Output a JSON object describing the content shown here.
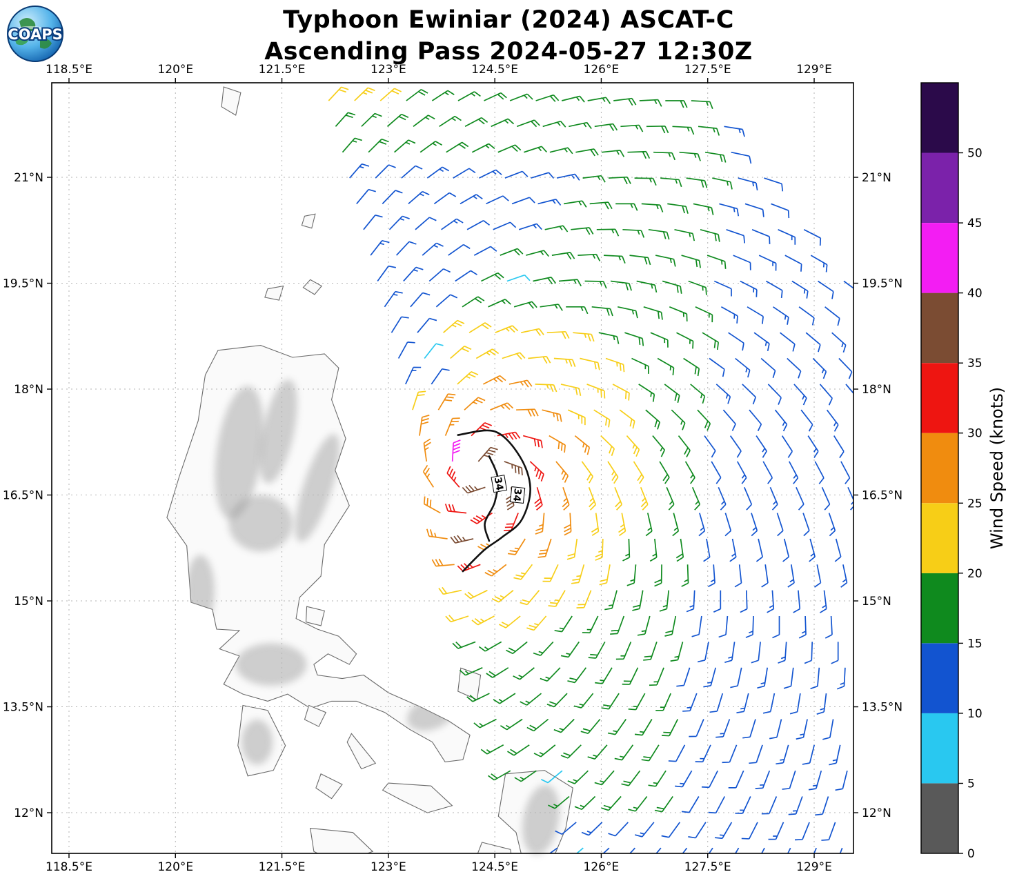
{
  "header": {
    "title_line1": "Typhoon Ewiniar (2024) ASCAT-C",
    "title_line2": "Ascending Pass 2024-05-27 12:30Z",
    "logo_text": "COAPS"
  },
  "chart_data": {
    "type": "scatter",
    "subtype": "satellite_wind_barb_map",
    "title": "Typhoon Ewiniar (2024) ASCAT-C  Ascending Pass 2024-05-27 12:30Z",
    "x_axis": {
      "range": [
        118.257,
        129.554
      ],
      "ticks": [
        {
          "v": 118.5,
          "label": "118.5°E"
        },
        {
          "v": 120,
          "label": "120°E"
        },
        {
          "v": 121.5,
          "label": "121.5°E"
        },
        {
          "v": 123,
          "label": "123°E"
        },
        {
          "v": 124.5,
          "label": "124.5°E"
        },
        {
          "v": 126,
          "label": "126°E"
        },
        {
          "v": 127.5,
          "label": "127.5°E"
        },
        {
          "v": 129,
          "label": "129°E"
        }
      ]
    },
    "y_axis": {
      "range": [
        22.339,
        11.424
      ],
      "ticks": [
        {
          "v": 21,
          "label": "21°N"
        },
        {
          "v": 19.5,
          "label": "19.5°N"
        },
        {
          "v": 18,
          "label": "18°N"
        },
        {
          "v": 16.5,
          "label": "16.5°N"
        },
        {
          "v": 15,
          "label": "15°N"
        },
        {
          "v": 13.5,
          "label": "13.5°N"
        },
        {
          "v": 12,
          "label": "12°N"
        }
      ]
    },
    "grid": true,
    "colorbar": {
      "label": "Wind Speed (knots)",
      "range": [
        0,
        55
      ],
      "tick_values": [
        0,
        5,
        10,
        15,
        20,
        25,
        30,
        35,
        40,
        45,
        50
      ],
      "bins": [
        {
          "max": 5,
          "color": "#595959"
        },
        {
          "max": 10,
          "color": "#29c8f0"
        },
        {
          "max": 15,
          "color": "#1254d0"
        },
        {
          "max": 20,
          "color": "#0f8a1e"
        },
        {
          "max": 25,
          "color": "#f7ce17"
        },
        {
          "max": 30,
          "color": "#f08c0f"
        },
        {
          "max": 35,
          "color": "#ee1511"
        },
        {
          "max": 40,
          "color": "#7b4c33"
        },
        {
          "max": 45,
          "color": "#f31df3"
        },
        {
          "max": 50,
          "color": "#7b22aa"
        },
        {
          "max": 55,
          "color": "#2b0a4a"
        }
      ]
    },
    "contour": {
      "label": "34",
      "paths": [
        [
          [
            123.98,
            17.35
          ],
          [
            124.5,
            17.4
          ],
          [
            124.85,
            17.05
          ],
          [
            125.0,
            16.6
          ],
          [
            124.88,
            16.15
          ],
          [
            124.6,
            15.9
          ],
          [
            124.35,
            15.72
          ],
          [
            124.05,
            15.42
          ]
        ],
        [
          [
            124.42,
            17.05
          ],
          [
            124.54,
            16.75
          ],
          [
            124.5,
            16.4
          ],
          [
            124.36,
            16.1
          ],
          [
            124.42,
            15.85
          ]
        ]
      ],
      "label_points": [
        {
          "lon": 124.56,
          "lat": 16.66,
          "rot": 80
        },
        {
          "lon": 124.82,
          "lat": 16.5,
          "rot": 96
        }
      ]
    },
    "wind_model": {
      "center": {
        "lon": 124.38,
        "lat": 16.72
      },
      "inflow_deg": 25,
      "rings": [
        {
          "r": 0.38,
          "kt": 37
        },
        {
          "r": 0.72,
          "kt": 32
        },
        {
          "r": 1.12,
          "kt": 27
        },
        {
          "r": 1.9,
          "kt": 22
        },
        {
          "r": 99,
          "kt": 17
        }
      ],
      "ne_stretch": 0.3,
      "ne_az_rad": 0.55,
      "s_stretch": 0.18,
      "s_az_rad": 2.98,
      "magenta_patch": {
        "lon_min": 123.9,
        "lon_max": 124.25,
        "lat_min": 16.8,
        "lat_max": 17.15,
        "kt": 42
      },
      "south_patch": {
        "lon_min": 124.0,
        "lon_max": 124.45,
        "lat_min": 15.45,
        "lat_max": 15.95,
        "kt": 36
      },
      "top_green": {
        "lat_min": 21.15,
        "kt": 17
      },
      "top_yellow": {
        "lat_min": 21.85,
        "lon_max": 123.0,
        "kt": 22
      },
      "north_blue": {
        "lat_min": 19.15,
        "lon0": 123.85,
        "slope": 0.9,
        "kt": 12
      },
      "west_blue": {
        "lat_min": 17.75,
        "lon_max": 123.65,
        "kt": 12
      },
      "east_blue": {
        "lon0": 127.05,
        "lat0": 12,
        "slope": 0.07,
        "kt": 12
      },
      "bottom_blue": {
        "lat_max": 11.95,
        "kt": 12
      },
      "cyan_radius": 0.2,
      "cyan_spots": [
        [
          123.03,
          19.7
        ],
        [
          124.69,
          19.51
        ],
        [
          123.55,
          18.47
        ],
        [
          125.56,
          12.6
        ],
        [
          125.63,
          11.47
        ]
      ]
    },
    "swath": {
      "lat_min": 11.5,
      "lat_max": 22.33,
      "step": 0.365,
      "left": {
        "lon0": 122.1,
        "lat0": 22.3,
        "slope": 0.27
      },
      "right": {
        "lon0": 127.4,
        "lat0": 22.3,
        "slope": 0.75,
        "lon_max": 129.5
      },
      "land_skip": [
        {
          "lon_min": 124.7,
          "lon_max": 125.35,
          "lat_min": 11.2,
          "lat_max": 12.5
        },
        {
          "lon_min": 124.2,
          "lon_max": 124.8,
          "lat_min": 11.0,
          "lat_max": 11.6
        }
      ]
    },
    "map": {
      "islands": [
        {
          "name": "luzon",
          "pts": [
            [
              120.6,
              18.55
            ],
            [
              121.2,
              18.62
            ],
            [
              121.65,
              18.45
            ],
            [
              122.1,
              18.5
            ],
            [
              122.3,
              18.3
            ],
            [
              122.2,
              17.85
            ],
            [
              122.4,
              17.3
            ],
            [
              122.25,
              16.85
            ],
            [
              122.45,
              16.35
            ],
            [
              122.1,
              15.8
            ],
            [
              122.05,
              15.35
            ],
            [
              121.75,
              15.05
            ],
            [
              121.7,
              14.75
            ],
            [
              122.0,
              14.6
            ],
            [
              122.3,
              14.5
            ],
            [
              122.55,
              14.25
            ],
            [
              122.45,
              14.1
            ],
            [
              122.15,
              14.25
            ],
            [
              121.95,
              14.1
            ],
            [
              122.0,
              13.95
            ],
            [
              122.35,
              13.9
            ],
            [
              122.65,
              13.95
            ],
            [
              123.0,
              13.7
            ],
            [
              123.45,
              13.5
            ],
            [
              123.85,
              13.3
            ],
            [
              124.15,
              13.1
            ],
            [
              124.05,
              12.75
            ],
            [
              123.8,
              12.72
            ],
            [
              123.62,
              13.0
            ],
            [
              123.3,
              13.18
            ],
            [
              122.95,
              13.42
            ],
            [
              122.55,
              13.58
            ],
            [
              122.2,
              13.58
            ],
            [
              121.9,
              13.48
            ],
            [
              121.58,
              13.68
            ],
            [
              121.3,
              13.58
            ],
            [
              120.95,
              13.68
            ],
            [
              120.68,
              13.82
            ],
            [
              120.9,
              14.22
            ],
            [
              120.62,
              14.32
            ],
            [
              120.9,
              14.58
            ],
            [
              120.58,
              14.6
            ],
            [
              120.52,
              14.88
            ],
            [
              120.22,
              14.98
            ],
            [
              120.16,
              15.78
            ],
            [
              119.88,
              16.18
            ],
            [
              120.05,
              16.75
            ],
            [
              120.32,
              17.55
            ],
            [
              120.42,
              18.2
            ]
          ]
        },
        {
          "name": "mindoro",
          "pts": [
            [
              120.95,
              13.52
            ],
            [
              121.3,
              13.45
            ],
            [
              121.55,
              12.95
            ],
            [
              121.38,
              12.6
            ],
            [
              121.02,
              12.52
            ],
            [
              120.88,
              12.95
            ]
          ]
        },
        {
          "name": "marinduque",
          "pts": [
            [
              121.88,
              13.52
            ],
            [
              122.12,
              13.42
            ],
            [
              122.02,
              13.22
            ],
            [
              121.82,
              13.32
            ]
          ]
        },
        {
          "name": "catanduanes",
          "pts": [
            [
              124.02,
              14.05
            ],
            [
              124.3,
              13.95
            ],
            [
              124.25,
              13.6
            ],
            [
              123.98,
              13.72
            ]
          ]
        },
        {
          "name": "burias",
          "pts": [
            [
              122.48,
              13.12
            ],
            [
              122.82,
              12.7
            ],
            [
              122.62,
              12.62
            ],
            [
              122.42,
              13.0
            ]
          ]
        },
        {
          "name": "masbate",
          "pts": [
            [
              123.0,
              12.42
            ],
            [
              123.6,
              12.38
            ],
            [
              123.9,
              12.1
            ],
            [
              123.55,
              12.0
            ],
            [
              123.18,
              12.18
            ],
            [
              122.92,
              12.32
            ]
          ]
        },
        {
          "name": "romblon",
          "pts": [
            [
              122.05,
              12.55
            ],
            [
              122.35,
              12.4
            ],
            [
              122.2,
              12.2
            ],
            [
              121.98,
              12.35
            ]
          ]
        },
        {
          "name": "samar",
          "pts": [
            [
              124.65,
              12.55
            ],
            [
              125.2,
              12.6
            ],
            [
              125.6,
              12.35
            ],
            [
              125.5,
              11.78
            ],
            [
              125.28,
              11.25
            ],
            [
              124.9,
              11.3
            ],
            [
              124.8,
              11.72
            ],
            [
              124.55,
              11.95
            ]
          ]
        },
        {
          "name": "leyte",
          "pts": [
            [
              124.32,
              11.58
            ],
            [
              124.72,
              11.48
            ],
            [
              124.78,
              11.1
            ],
            [
              124.42,
              11.05
            ],
            [
              124.22,
              11.32
            ]
          ]
        },
        {
          "name": "panay",
          "pts": [
            [
              121.9,
              11.78
            ],
            [
              122.5,
              11.72
            ],
            [
              122.78,
              11.45
            ],
            [
              122.3,
              11.28
            ],
            [
              121.95,
              11.45
            ]
          ]
        },
        {
          "name": "taiwan-tip",
          "pts": [
            [
              120.68,
              22.28
            ],
            [
              120.92,
              22.2
            ],
            [
              120.85,
              21.88
            ],
            [
              120.65,
              22.0
            ]
          ]
        },
        {
          "name": "babuyan-1",
          "pts": [
            [
              121.3,
              19.42
            ],
            [
              121.52,
              19.46
            ],
            [
              121.46,
              19.26
            ],
            [
              121.26,
              19.3
            ]
          ]
        },
        {
          "name": "babuyan-2",
          "pts": [
            [
              121.9,
              19.55
            ],
            [
              122.06,
              19.46
            ],
            [
              121.96,
              19.34
            ],
            [
              121.8,
              19.44
            ]
          ]
        },
        {
          "name": "batan",
          "pts": [
            [
              121.82,
              20.45
            ],
            [
              121.97,
              20.48
            ],
            [
              121.92,
              20.28
            ],
            [
              121.78,
              20.32
            ]
          ]
        },
        {
          "name": "polillo",
          "pts": [
            [
              121.85,
              14.92
            ],
            [
              122.1,
              14.86
            ],
            [
              122.05,
              14.65
            ],
            [
              121.84,
              14.7
            ]
          ]
        }
      ],
      "terrain": [
        {
          "lon": 120.9,
          "lat": 17.1,
          "rx": 0.32,
          "ry": 0.95,
          "rot": 8
        },
        {
          "lon": 121.45,
          "lat": 17.4,
          "rx": 0.22,
          "ry": 0.75,
          "rot": 12
        },
        {
          "lon": 122.0,
          "lat": 16.6,
          "rx": 0.2,
          "ry": 0.8,
          "rot": 18
        },
        {
          "lon": 121.2,
          "lat": 16.1,
          "rx": 0.45,
          "ry": 0.4,
          "rot": 0
        },
        {
          "lon": 120.35,
          "lat": 15.15,
          "rx": 0.2,
          "ry": 0.5,
          "rot": 0
        },
        {
          "lon": 121.35,
          "lat": 14.1,
          "rx": 0.5,
          "ry": 0.3,
          "rot": 0
        },
        {
          "lon": 123.6,
          "lat": 13.4,
          "rx": 0.35,
          "ry": 0.22,
          "rot": -20
        },
        {
          "lon": 121.15,
          "lat": 13.0,
          "rx": 0.22,
          "ry": 0.32,
          "rot": 0
        },
        {
          "lon": 125.15,
          "lat": 11.9,
          "rx": 0.25,
          "ry": 0.5,
          "rot": 10
        }
      ]
    }
  }
}
